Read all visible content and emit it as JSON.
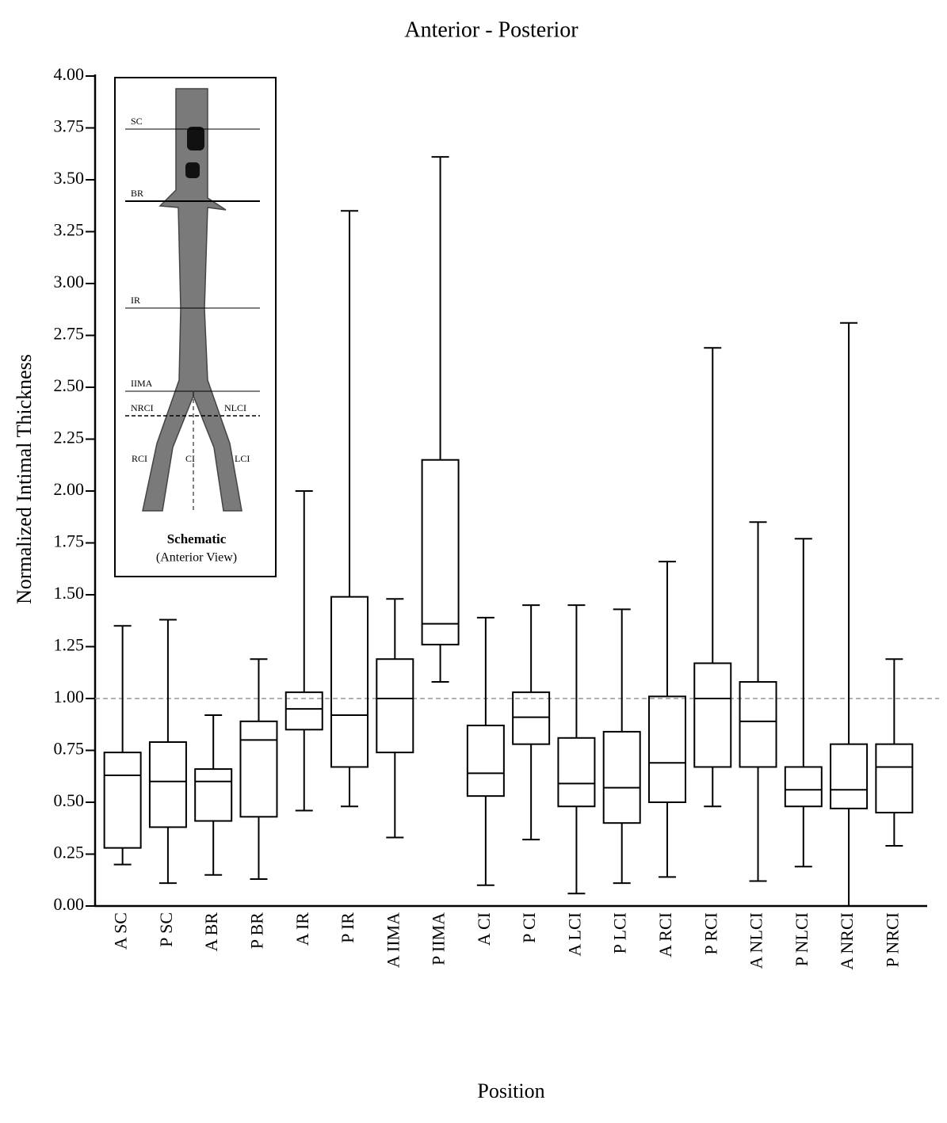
{
  "chart_data": {
    "type": "box",
    "title": "Anterior - Posterior",
    "x_label": "Position",
    "y_label": "Normalized Intimal Thickness",
    "categories": [
      "A SC",
      "P SC",
      "A BR",
      "P BR",
      "A IR",
      "P IR",
      "A IIMA",
      "P IIMA",
      "A CI",
      "P CI",
      "A LCI",
      "P LCI",
      "A RCI",
      "P RCI",
      "A NLCI",
      "P NLCI",
      "A NRCI",
      "P NRCI"
    ],
    "min": [
      0.2,
      0.11,
      0.15,
      0.13,
      0.46,
      0.48,
      0.33,
      1.08,
      0.1,
      0.32,
      0.06,
      0.11,
      0.14,
      0.48,
      0.12,
      0.19,
      0,
      0.29
    ],
    "q1": [
      0.28,
      0.38,
      0.41,
      0.43,
      0.85,
      0.67,
      0.74,
      1.26,
      0.53,
      0.78,
      0.48,
      0.4,
      0.5,
      0.67,
      0.67,
      0.48,
      0.47,
      0.45
    ],
    "median": [
      0.63,
      0.6,
      0.6,
      0.8,
      0.95,
      0.92,
      1.0,
      1.36,
      0.64,
      0.91,
      0.59,
      0.57,
      0.69,
      1.0,
      0.89,
      0.56,
      0.56,
      0.67
    ],
    "q3": [
      0.74,
      0.79,
      0.66,
      0.89,
      1.03,
      1.49,
      1.19,
      2.15,
      0.87,
      1.03,
      0.81,
      0.84,
      1.01,
      1.17,
      1.08,
      0.67,
      0.78,
      0.78
    ],
    "max": [
      1.35,
      1.38,
      0.92,
      1.19,
      2.0,
      3.35,
      1.48,
      3.61,
      1.39,
      1.45,
      1.45,
      1.43,
      1.66,
      2.69,
      1.85,
      1.77,
      2.81,
      1.19
    ],
    "color": "#000000",
    "reference_line": 1,
    "ylim": [
      0,
      4
    ],
    "yticks": [
      {
        "value": 0,
        "label": "0.00"
      },
      {
        "value": 0.25,
        "label": "0.25"
      },
      {
        "value": 0.5,
        "label": "0.50"
      },
      {
        "value": 0.75,
        "label": "0.75"
      },
      {
        "value": 1,
        "label": "1.00"
      },
      {
        "value": 1.25,
        "label": "1.25"
      },
      {
        "value": 1.5,
        "label": "1.50"
      },
      {
        "value": 1.75,
        "label": "1.75"
      },
      {
        "value": 2,
        "label": "2.00"
      },
      {
        "value": 2.25,
        "label": "2.25"
      },
      {
        "value": 2.5,
        "label": "2.50"
      },
      {
        "value": 2.75,
        "label": "2.75"
      },
      {
        "value": 3,
        "label": "3.00"
      },
      {
        "value": 3.25,
        "label": "3.25"
      },
      {
        "value": 3.5,
        "label": "3.50"
      },
      {
        "value": 3.75,
        "label": "3.75"
      },
      {
        "value": 4,
        "label": "4.00"
      }
    ],
    "grid": false,
    "inset": {
      "labels": [
        "SC",
        "BR",
        "IR",
        "IIMA",
        "NRCI",
        "NLCI",
        "RCI",
        "CI",
        "LCI"
      ],
      "caption": "Schematic",
      "subcaption": "(Anterior View)"
    }
  }
}
